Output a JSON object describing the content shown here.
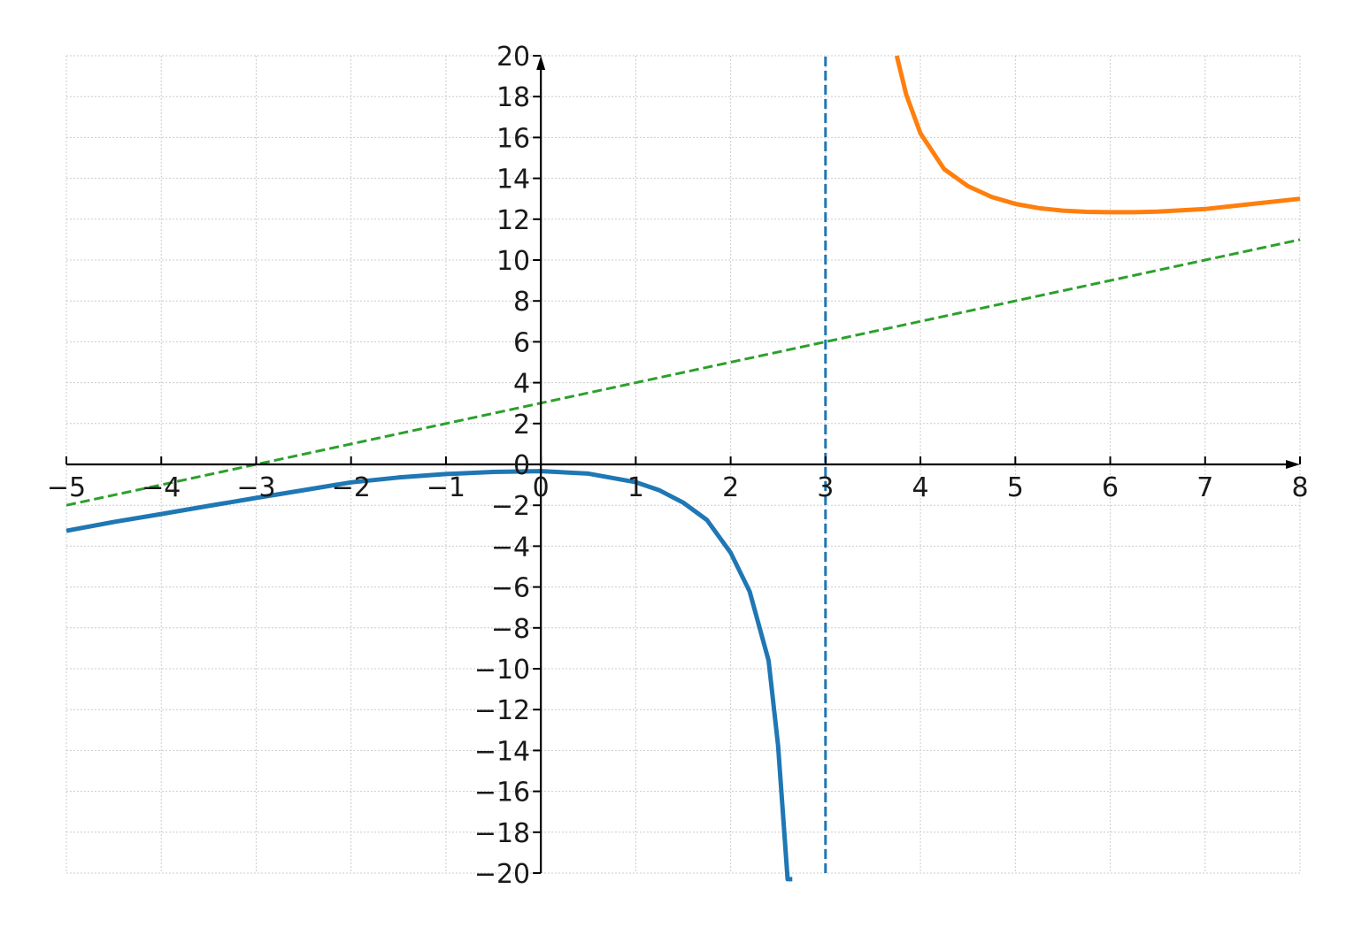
{
  "chart_data": {
    "type": "line",
    "title": "",
    "xlabel": "",
    "ylabel": "",
    "xlim": [
      -5,
      8
    ],
    "ylim": [
      -20,
      20
    ],
    "grid": true,
    "x_ticks": [
      "−5",
      "−4",
      "−3",
      "−2",
      "−1",
      "0",
      "1",
      "2",
      "3",
      "4",
      "5",
      "6",
      "7",
      "8"
    ],
    "y_ticks": [
      "−20",
      "−18",
      "−16",
      "−14",
      "−12",
      "−10",
      "−8",
      "−6",
      "−4",
      "−2",
      "0",
      "2",
      "4",
      "6",
      "8",
      "10",
      "12",
      "14",
      "16",
      "18",
      "20"
    ],
    "series": [
      {
        "style": "solid",
        "color": "#1f77b4",
        "x": [
          -5,
          -4.5,
          -4,
          -3.5,
          -3,
          -2.5,
          -2,
          -1.5,
          -1,
          -0.5,
          0,
          0.5,
          1,
          1.25,
          1.5,
          1.75,
          2,
          2.2,
          2.4,
          2.5,
          2.6,
          2.65
        ],
        "y": [
          -3.25,
          -2.82,
          -2.43,
          -2.03,
          -1.64,
          -1.26,
          -0.88,
          -0.64,
          -0.47,
          -0.37,
          -0.33,
          -0.45,
          -0.87,
          -1.27,
          -1.87,
          -2.72,
          -4.32,
          -6.22,
          -9.6,
          -13.75,
          -20.3,
          -20.3
        ]
      },
      {
        "style": "solid",
        "color": "#ff7f0e",
        "x": [
          3.75,
          3.85,
          4,
          4.25,
          4.5,
          4.75,
          5,
          5.25,
          5.5,
          5.75,
          6,
          6.25,
          6.5,
          7,
          7.5,
          8
        ],
        "y": [
          20,
          18.1,
          16.2,
          14.45,
          13.62,
          13.09,
          12.75,
          12.54,
          12.42,
          12.36,
          12.34,
          12.34,
          12.37,
          12.5,
          12.75,
          13
        ]
      },
      {
        "style": "dashed",
        "color": "#2ca02c",
        "x": [
          -5,
          8
        ],
        "y": [
          -2,
          11
        ]
      },
      {
        "style": "dashed",
        "color": "#1f77b4",
        "x": [
          3,
          3
        ],
        "y": [
          -20,
          20
        ]
      }
    ]
  }
}
